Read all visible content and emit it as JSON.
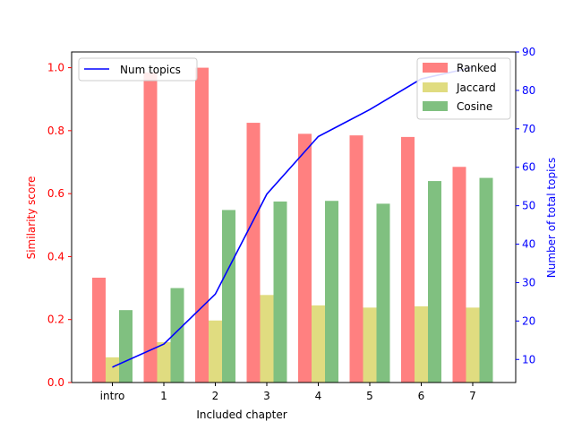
{
  "chart_data": {
    "type": "bar",
    "title": "",
    "xlabel": "Included chapter",
    "ylabel": "Similarity score",
    "y2label": "Number of total topics",
    "categories": [
      "intro",
      "1",
      "2",
      "3",
      "4",
      "5",
      "6",
      "7"
    ],
    "ylim": [
      0,
      1.05
    ],
    "y2lim": [
      4,
      90
    ],
    "yticks": [
      "0.0",
      "0.2",
      "0.4",
      "0.6",
      "0.8",
      "1.0"
    ],
    "y2ticks": [
      "10",
      "20",
      "30",
      "40",
      "50",
      "60",
      "70",
      "80",
      "90"
    ],
    "grid": false,
    "series": [
      {
        "name": "Ranked",
        "type": "bar",
        "axis": "left",
        "color": "#ff8080",
        "values": [
          0.333,
          0.985,
          1.0,
          0.825,
          0.79,
          0.785,
          0.78,
          0.685
        ]
      },
      {
        "name": "Jaccard",
        "type": "bar",
        "axis": "left",
        "color": "#e0dc80",
        "values": [
          0.08,
          0.128,
          0.197,
          0.278,
          0.245,
          0.238,
          0.242,
          0.238
        ]
      },
      {
        "name": "Cosine",
        "type": "bar",
        "axis": "left",
        "color": "#80c080",
        "values": [
          0.23,
          0.3,
          0.548,
          0.575,
          0.577,
          0.568,
          0.64,
          0.65
        ]
      },
      {
        "name": "Num topics",
        "type": "line",
        "axis": "right",
        "color": "#0000ff",
        "values": [
          8,
          14,
          27,
          53,
          68,
          75,
          83,
          86
        ]
      }
    ],
    "legend_left": {
      "placement": "upper-left",
      "entries": [
        "Num topics"
      ]
    },
    "legend_right": {
      "placement": "upper-right",
      "entries": [
        "Ranked",
        "Jaccard",
        "Cosine"
      ]
    },
    "left_axis_color": "#ff0000",
    "right_axis_color": "#0000ff"
  }
}
